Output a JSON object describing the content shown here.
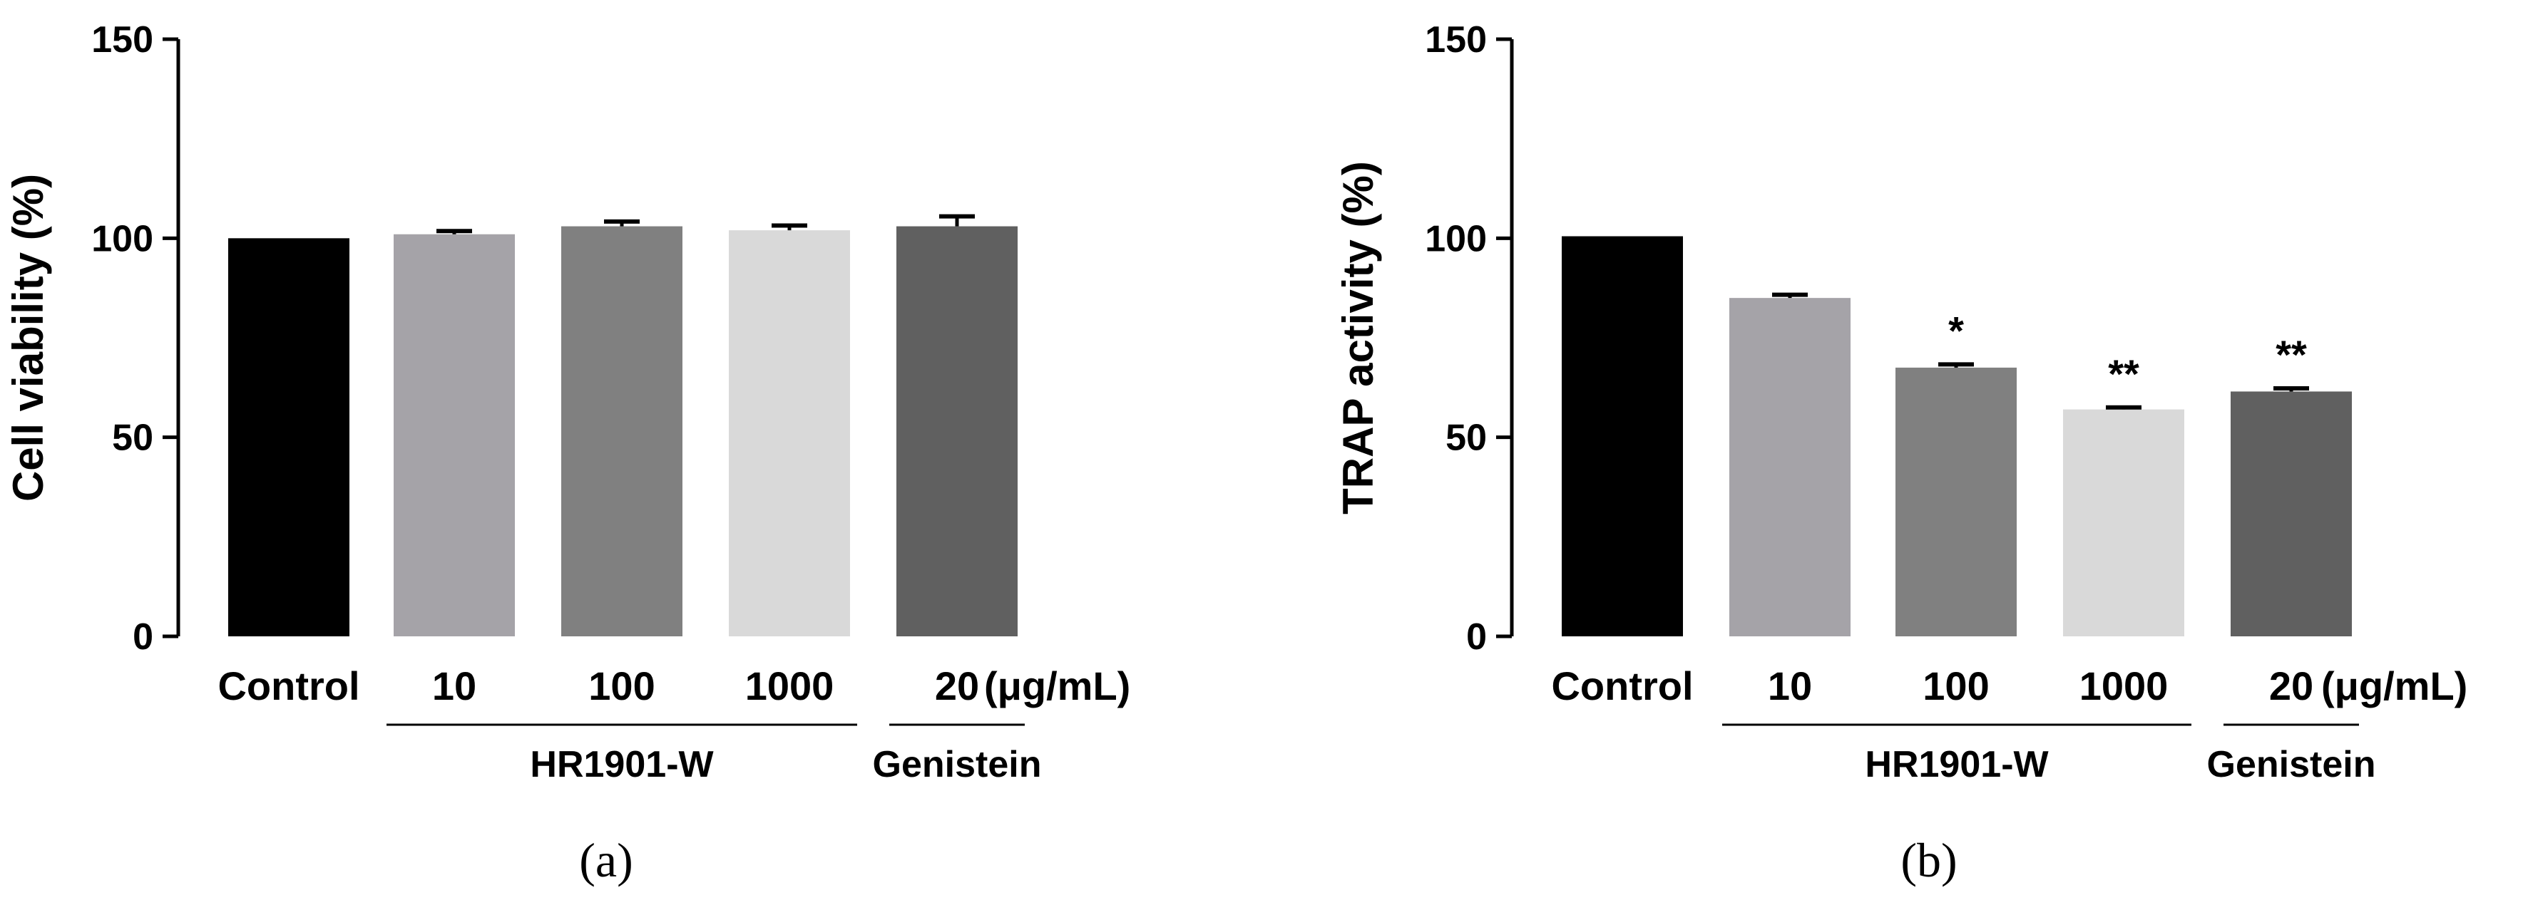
{
  "colors": {
    "axis": "#000000",
    "bar_control": "#000000",
    "bar_10": "#a5a3a8",
    "bar_100": "#808080",
    "bar_1000": "#d9d9d9",
    "bar_genistein": "#606060"
  },
  "chart_data": [
    {
      "type": "bar",
      "panel_label": "(a)",
      "ylabel": "Cell viability (%)",
      "ylim": [
        0,
        150
      ],
      "yticks": [
        0,
        50,
        100,
        150
      ],
      "categories": [
        "Control",
        "10",
        "100",
        "1000",
        "20"
      ],
      "unit_label": "(μg/mL)",
      "values": [
        100,
        101,
        103,
        102,
        103
      ],
      "errors": [
        0,
        0.8,
        1.2,
        1.2,
        2.5
      ],
      "significance": [
        "",
        "",
        "",
        "",
        ""
      ],
      "groups": [
        {
          "label": "HR1901-W",
          "from": 1,
          "to": 3
        },
        {
          "label": "Genistein",
          "from": 4,
          "to": 4
        }
      ]
    },
    {
      "type": "bar",
      "panel_label": "(b)",
      "ylabel": "TRAP activity (%)",
      "ylim": [
        0,
        150
      ],
      "yticks": [
        0,
        50,
        100,
        150
      ],
      "categories": [
        "Control",
        "10",
        "100",
        "1000",
        "20"
      ],
      "unit_label": "(μg/mL)",
      "values": [
        100.5,
        85,
        67.5,
        57,
        61.5
      ],
      "errors": [
        0,
        0.8,
        0.8,
        0.5,
        0.8
      ],
      "significance": [
        "",
        "",
        "*",
        "**",
        "**"
      ],
      "groups": [
        {
          "label": "HR1901-W",
          "from": 1,
          "to": 3
        },
        {
          "label": "Genistein",
          "from": 4,
          "to": 4
        }
      ]
    }
  ]
}
